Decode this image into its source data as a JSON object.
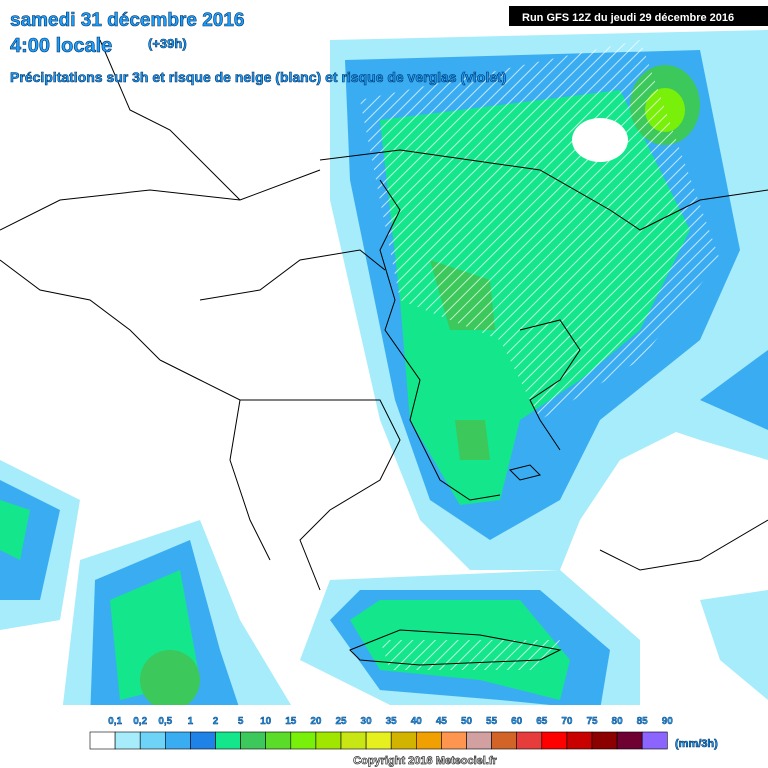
{
  "header": {
    "line1": "samedi 31 décembre 2016",
    "line2": "4:00 locale",
    "offset": "(+39h)",
    "subtitle": "Précipitations sur 3h et risque de neige (blanc) et risque de verglas (violet)",
    "run": "Run GFS 12Z du jeudi 29 décembre 2016"
  },
  "legend": {
    "unit": "(mm/3h)",
    "items": [
      {
        "label": "0,1",
        "color": "#ffffff"
      },
      {
        "label": "0,2",
        "color": "#a6ecfb"
      },
      {
        "label": "0,5",
        "color": "#6dd3f7"
      },
      {
        "label": "1",
        "color": "#3aadf2"
      },
      {
        "label": "2",
        "color": "#1e82e6"
      },
      {
        "label": "5",
        "color": "#14e68c"
      },
      {
        "label": "10",
        "color": "#3cc85a"
      },
      {
        "label": "15",
        "color": "#5adc28"
      },
      {
        "label": "20",
        "color": "#78f00a"
      },
      {
        "label": "25",
        "color": "#a0e600"
      },
      {
        "label": "30",
        "color": "#c8e614"
      },
      {
        "label": "35",
        "color": "#e6f01e"
      },
      {
        "label": "40",
        "color": "#d2b400"
      },
      {
        "label": "45",
        "color": "#f0a000"
      },
      {
        "label": "50",
        "color": "#ff9650"
      },
      {
        "label": "55",
        "color": "#d2a0a0"
      },
      {
        "label": "60",
        "color": "#d26428"
      },
      {
        "label": "65",
        "color": "#e63c3c"
      },
      {
        "label": "70",
        "color": "#ff0000"
      },
      {
        "label": "75",
        "color": "#c80000"
      },
      {
        "label": "80",
        "color": "#8c0000"
      },
      {
        "label": "85",
        "color": "#6e0032"
      },
      {
        "label": "90",
        "color": "#8c64ff"
      }
    ]
  },
  "footer": {
    "copyright": "Copyright 2016 Meteociel.fr"
  }
}
